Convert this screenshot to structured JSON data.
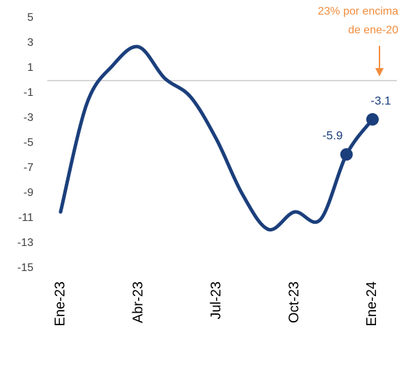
{
  "chart_data": {
    "type": "line",
    "categories": [
      "Ene-23",
      null,
      null,
      "Abr-23",
      null,
      null,
      "Jul-23",
      null,
      null,
      "Oct-23",
      null,
      null,
      "Ene-24"
    ],
    "series": [
      {
        "color": "#1b3f7c",
        "values": [
          -10.5,
          -1.9,
          1.2,
          2.7,
          0.2,
          -1.3,
          -4.7,
          -9.1,
          -11.9,
          -10.5,
          -11.1,
          -5.9,
          -3.1
        ]
      }
    ],
    "labeled_points": [
      11,
      12
    ],
    "ylim": [
      -16,
      6
    ],
    "yticks": [
      5,
      3,
      1,
      -1,
      -3,
      -5,
      -7,
      -9,
      -11,
      -13,
      -15
    ],
    "reference_line": 0,
    "annotation": {
      "lines": [
        "23% por encima",
        "de ene-20"
      ],
      "color": "#f28c3c"
    }
  }
}
